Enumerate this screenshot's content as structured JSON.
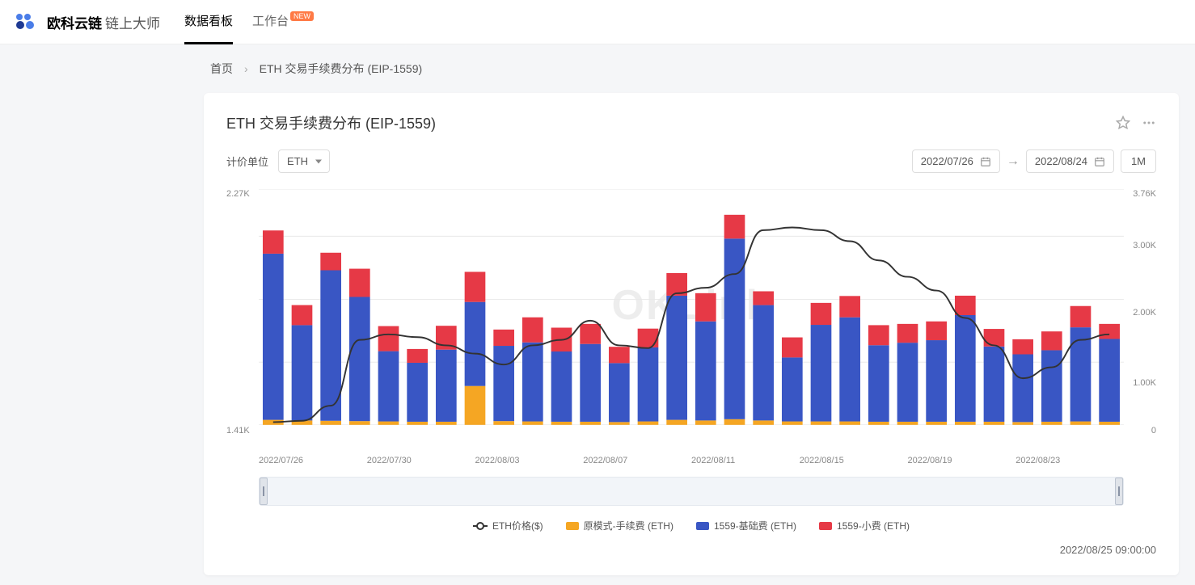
{
  "header": {
    "brand_name": "欧科云链",
    "brand_sub": "链上大师",
    "nav": {
      "dashboard": "数据看板",
      "workspace": "工作台",
      "badge": "NEW"
    }
  },
  "breadcrumb": {
    "home": "首页",
    "page": "ETH 交易手续费分布 (EIP-1559)"
  },
  "panel": {
    "title": "ETH 交易手续费分布 (EIP-1559)",
    "unit_label": "计价单位",
    "unit_value": "ETH",
    "date_start": "2022/07/26",
    "date_end": "2022/08/24",
    "range_label": "1M"
  },
  "chart": {
    "type": "bar-stacked-with-line",
    "left_axis": {
      "top": "2.27K",
      "bottom": "1.41K"
    },
    "right_axis": {
      "ticks": [
        "3.76K",
        "3.00K",
        "2.00K",
        "1.00K",
        "0"
      ]
    },
    "x_labels": [
      "2022/07/26",
      "2022/07/30",
      "2022/08/03",
      "2022/08/07",
      "2022/08/11",
      "2022/08/15",
      "2022/08/19",
      "2022/08/23"
    ],
    "colors": {
      "line": "#333333",
      "orange": "#f5a623",
      "blue": "#3956c4",
      "red": "#e63946",
      "bg": "#ffffff",
      "grid": "#e8e8e8"
    },
    "bars": [
      {
        "orange": 80,
        "blue": 2650,
        "red": 370
      },
      {
        "orange": 70,
        "blue": 1520,
        "red": 320
      },
      {
        "orange": 65,
        "blue": 2400,
        "red": 280
      },
      {
        "orange": 60,
        "blue": 1980,
        "red": 450
      },
      {
        "orange": 55,
        "blue": 1120,
        "red": 400
      },
      {
        "orange": 50,
        "blue": 940,
        "red": 220
      },
      {
        "orange": 50,
        "blue": 1150,
        "red": 380
      },
      {
        "orange": 620,
        "blue": 1340,
        "red": 480
      },
      {
        "orange": 60,
        "blue": 1200,
        "red": 260
      },
      {
        "orange": 55,
        "blue": 1260,
        "red": 400
      },
      {
        "orange": 50,
        "blue": 1120,
        "red": 380
      },
      {
        "orange": 50,
        "blue": 1240,
        "red": 320
      },
      {
        "orange": 45,
        "blue": 940,
        "red": 260
      },
      {
        "orange": 55,
        "blue": 1180,
        "red": 300
      },
      {
        "orange": 80,
        "blue": 1980,
        "red": 360
      },
      {
        "orange": 70,
        "blue": 1580,
        "red": 450
      },
      {
        "orange": 90,
        "blue": 2880,
        "red": 380
      },
      {
        "orange": 70,
        "blue": 1840,
        "red": 220
      },
      {
        "orange": 55,
        "blue": 1020,
        "red": 320
      },
      {
        "orange": 55,
        "blue": 1540,
        "red": 350
      },
      {
        "orange": 55,
        "blue": 1660,
        "red": 340
      },
      {
        "orange": 50,
        "blue": 1220,
        "red": 320
      },
      {
        "orange": 50,
        "blue": 1260,
        "red": 300
      },
      {
        "orange": 50,
        "blue": 1300,
        "red": 300
      },
      {
        "orange": 50,
        "blue": 1700,
        "red": 310
      },
      {
        "orange": 50,
        "blue": 1200,
        "red": 280
      },
      {
        "orange": 45,
        "blue": 1080,
        "red": 240
      },
      {
        "orange": 50,
        "blue": 1140,
        "red": 300
      },
      {
        "orange": 55,
        "blue": 1500,
        "red": 340
      },
      {
        "orange": 50,
        "blue": 1320,
        "red": 240
      }
    ],
    "price_line": [
      1420,
      1425,
      1480,
      1720,
      1740,
      1730,
      1700,
      1670,
      1630,
      1700,
      1720,
      1790,
      1700,
      1690,
      1890,
      1910,
      1960,
      2120,
      2130,
      2120,
      2080,
      2010,
      1950,
      1900,
      1800,
      1700,
      1580,
      1620,
      1720,
      1740
    ],
    "price_range": [
      1410,
      2270
    ],
    "value_max": 3760,
    "watermark": "OKLink"
  },
  "legend": {
    "price": "ETH价格($)",
    "orange": "原模式-手续费 (ETH)",
    "blue": "1559-基础费 (ETH)",
    "red": "1559-小费 (ETH)"
  },
  "timestamp": "2022/08/25 09:00:00"
}
